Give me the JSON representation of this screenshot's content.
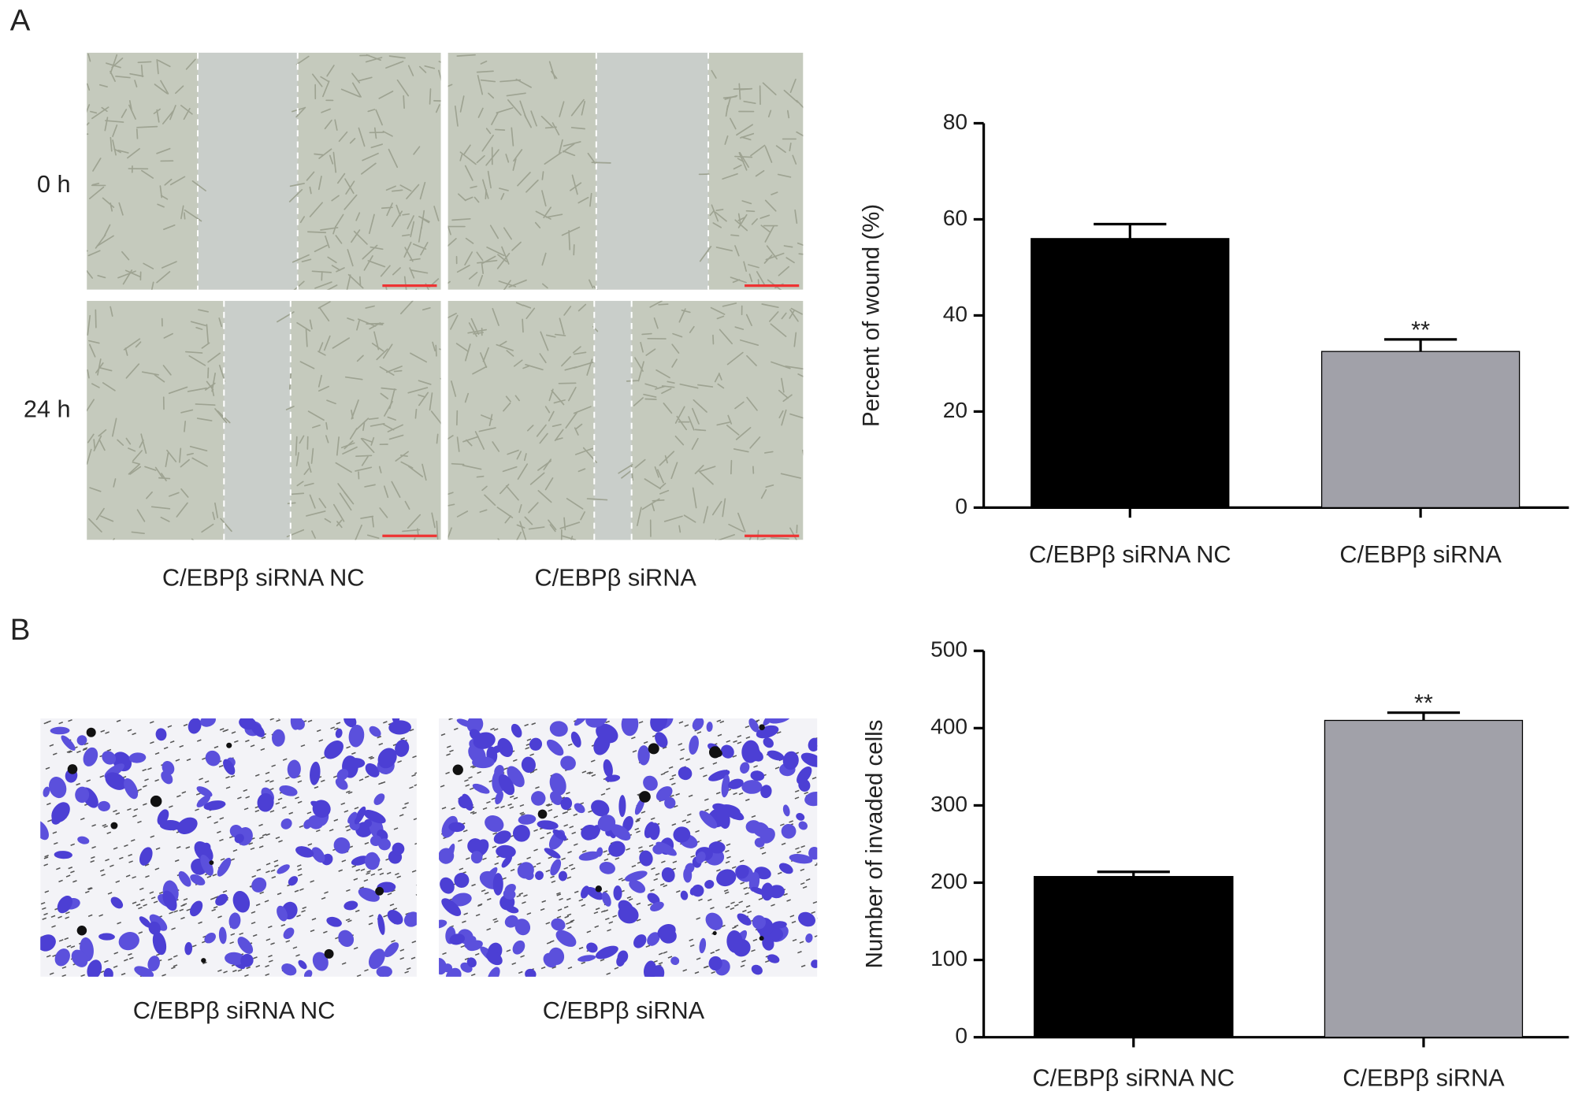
{
  "panels": [
    {
      "label": "A",
      "rows": [
        "0 h",
        "24 h"
      ],
      "image_labels": [
        "C/EBPβ siRNA NC",
        "C/EBPβ siRNA"
      ]
    },
    {
      "label": "B",
      "image_labels": [
        "C/EBPβ siRNA NC",
        "C/EBPβ siRNA"
      ]
    }
  ],
  "chart_data": [
    {
      "type": "bar",
      "ylabel": "Percent of wound (%)",
      "categories": [
        "C/EBPβ siRNA NC",
        "C/EBPβ siRNA"
      ],
      "values": [
        56,
        32.5
      ],
      "errors": [
        3,
        2.5
      ],
      "significance": [
        null,
        "**"
      ],
      "colors": [
        "#000000",
        "#a1a1a9"
      ],
      "ylim": [
        0,
        80
      ],
      "yticks": [
        0,
        20,
        40,
        60,
        80
      ]
    },
    {
      "type": "bar",
      "ylabel": "Number of invaded cells",
      "categories": [
        "C/EBPβ siRNA NC",
        "C/EBPβ siRNA"
      ],
      "values": [
        208,
        410
      ],
      "errors": [
        6,
        10
      ],
      "significance": [
        null,
        "**"
      ],
      "colors": [
        "#000000",
        "#a1a1a9"
      ],
      "ylim": [
        0,
        500
      ],
      "yticks": [
        0,
        100,
        200,
        300,
        400,
        500
      ]
    }
  ]
}
